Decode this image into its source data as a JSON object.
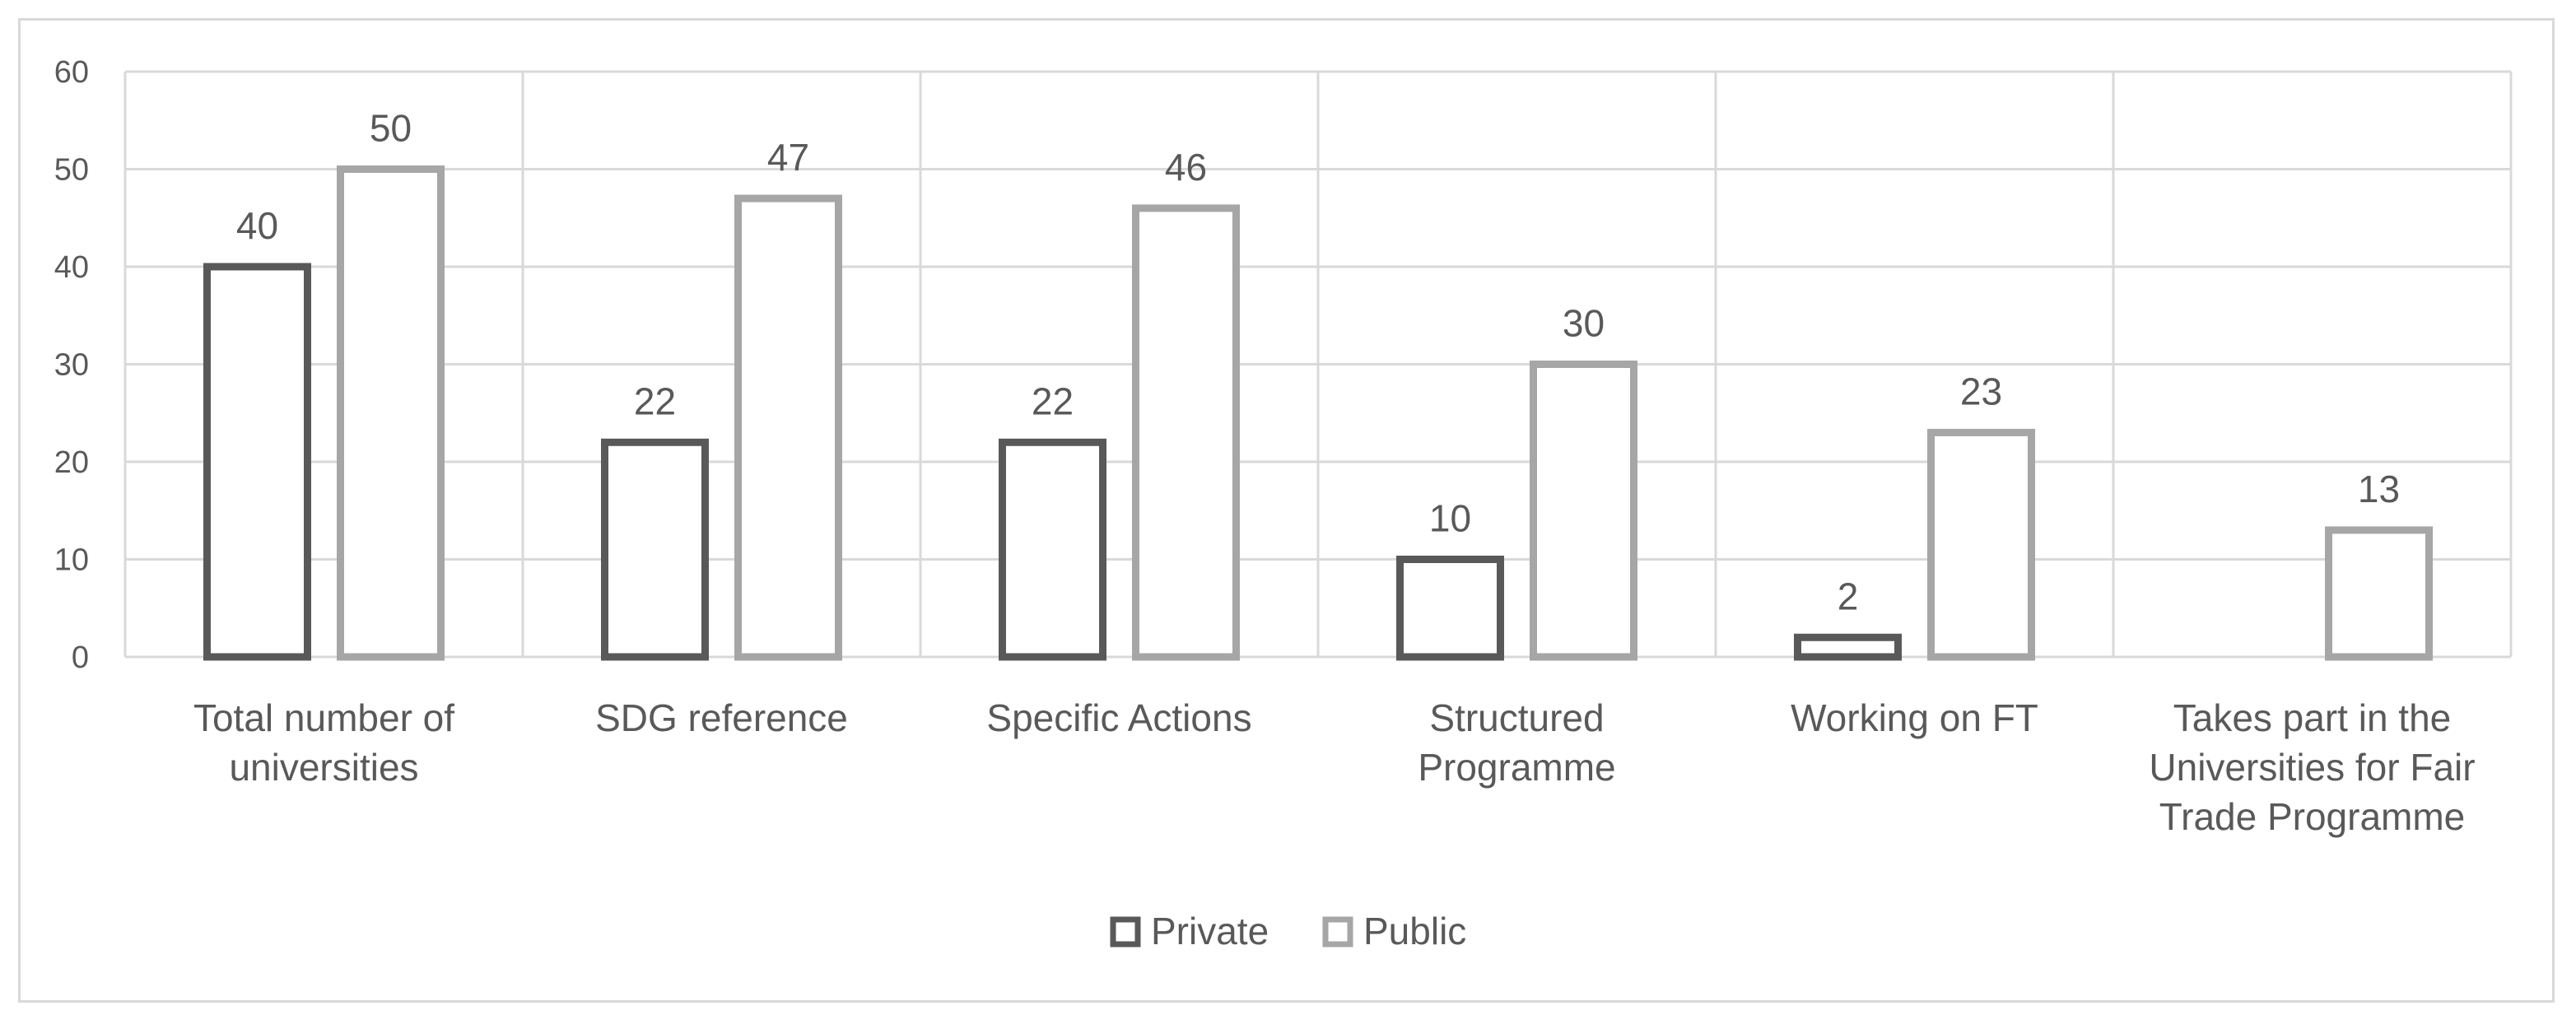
{
  "chart_data": {
    "type": "bar",
    "categories": [
      [
        "Total number of",
        "universities"
      ],
      [
        "SDG reference"
      ],
      [
        "Specific Actions"
      ],
      [
        "Structured",
        "Programme"
      ],
      [
        "Working on FT"
      ],
      [
        "Takes part in the",
        "Universities for Fair",
        "Trade Programme"
      ]
    ],
    "series": [
      {
        "name": "Private",
        "values": [
          40,
          22,
          22,
          10,
          2,
          null
        ],
        "color": "#595959"
      },
      {
        "name": "Public",
        "values": [
          50,
          47,
          46,
          30,
          23,
          13
        ],
        "color": "#a6a6a6"
      }
    ],
    "ylim": [
      0,
      60
    ],
    "yticks": [
      0,
      10,
      20,
      30,
      40,
      50,
      60
    ],
    "grid": true,
    "legend": "bottom-center"
  }
}
